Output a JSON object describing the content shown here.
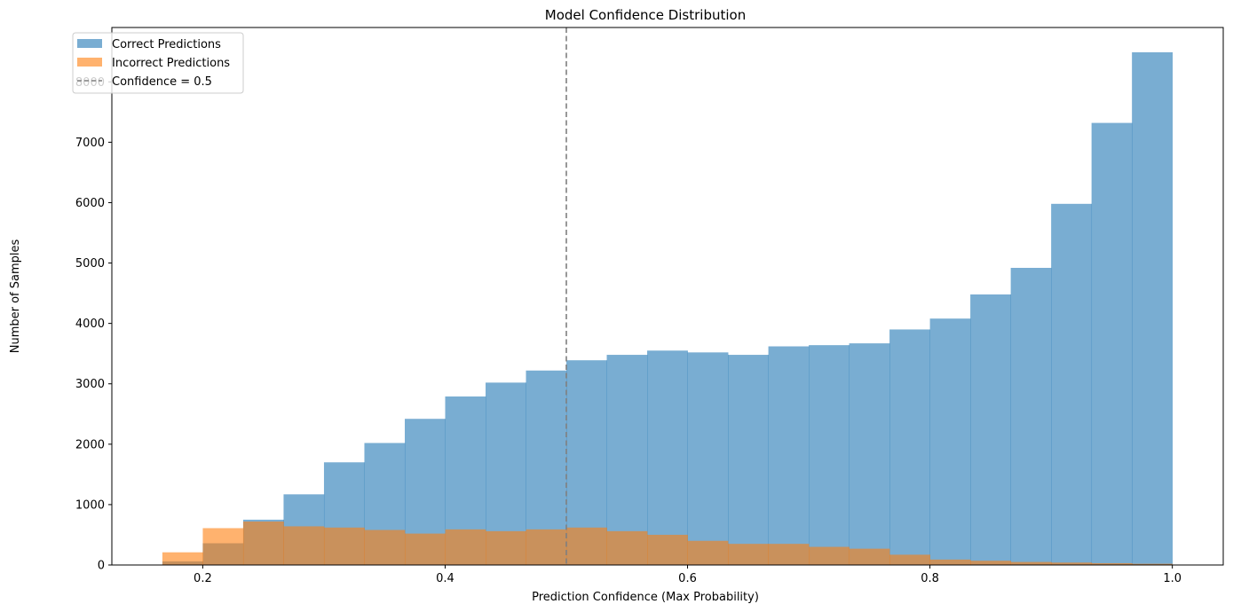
{
  "chart_data": {
    "type": "bar",
    "title": "Model Confidence Distribution",
    "xlabel": "Prediction Confidence (Max Probability)",
    "ylabel": "Number of Samples",
    "xlim": [
      0.125,
      1.042
    ],
    "ylim": [
      0,
      8900
    ],
    "xticks": [
      0.2,
      0.4,
      0.6,
      0.8,
      1.0
    ],
    "xtick_labels": [
      "0.2",
      "0.4",
      "0.6",
      "0.8",
      "1.0"
    ],
    "yticks": [
      0,
      1000,
      2000,
      3000,
      4000,
      5000,
      6000,
      7000,
      8000
    ],
    "ytick_labels": [
      "0",
      "1000",
      "2000",
      "3000",
      "4000",
      "5000",
      "6000",
      "7000",
      "8000"
    ],
    "bin_start": 0.1667,
    "bin_end": 1.0,
    "bin_count": 25,
    "series": [
      {
        "name": "Correct Predictions",
        "color": "#1f77b4",
        "alpha": 0.6,
        "values": [
          60,
          360,
          750,
          1170,
          1700,
          2020,
          2420,
          2790,
          3020,
          3220,
          3390,
          3480,
          3550,
          3520,
          3480,
          3620,
          3640,
          3670,
          3900,
          4080,
          4480,
          4920,
          5980,
          7320,
          8490
        ]
      },
      {
        "name": "Incorrect Predictions",
        "color": "#ff7f0e",
        "alpha": 0.6,
        "values": [
          210,
          610,
          720,
          640,
          620,
          580,
          520,
          590,
          560,
          590,
          620,
          560,
          500,
          400,
          350,
          350,
          300,
          270,
          170,
          90,
          70,
          50,
          40,
          30,
          20
        ]
      }
    ],
    "reference_line": {
      "label": "Confidence = 0.5",
      "x": 0.5,
      "color": "#7f7f7f",
      "style": "dashed"
    },
    "legend_position": "top-left",
    "grid": false
  }
}
